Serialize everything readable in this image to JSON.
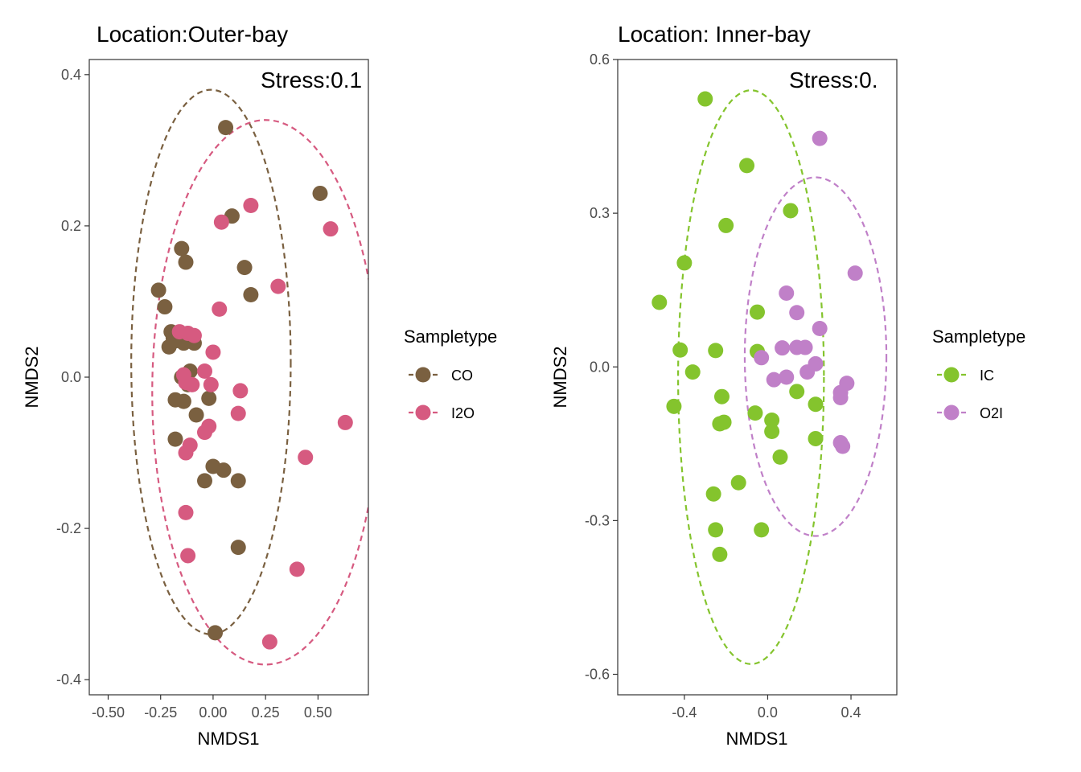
{
  "chart_data": [
    {
      "type": "scatter",
      "title": "Location:Outer-bay",
      "annotation": "Stress:0.1",
      "xlabel": "NMDS1",
      "ylabel": "NMDS2",
      "xlim": [
        -0.59,
        0.74
      ],
      "ylim": [
        -0.42,
        0.42
      ],
      "xticks": [
        -0.5,
        -0.25,
        0.0,
        0.25,
        0.5
      ],
      "xtick_labels": [
        "-0.50",
        "-0.25",
        "0.00",
        "0.25",
        "0.50"
      ],
      "yticks": [
        -0.4,
        -0.2,
        0.0,
        0.2,
        0.4
      ],
      "ytick_labels": [
        "-0.4",
        "-0.2",
        "0.0",
        "0.2",
        "0.4"
      ],
      "grid": false,
      "legend": {
        "title": "Sampletype",
        "position": "right"
      },
      "series": [
        {
          "name": "CO",
          "color": "#7a6040",
          "ellipse": {
            "cx": -0.01,
            "cy": 0.02,
            "rx": 0.38,
            "ry": 0.36
          },
          "points": [
            [
              0.06,
              0.33
            ],
            [
              0.09,
              0.213
            ],
            [
              0.51,
              0.243
            ],
            [
              -0.15,
              0.17
            ],
            [
              -0.13,
              0.152
            ],
            [
              0.15,
              0.145
            ],
            [
              -0.26,
              0.115
            ],
            [
              0.18,
              0.109
            ],
            [
              -0.23,
              0.093
            ],
            [
              -0.2,
              0.06
            ],
            [
              -0.19,
              0.052
            ],
            [
              -0.18,
              0.048
            ],
            [
              -0.14,
              0.045
            ],
            [
              -0.09,
              0.045
            ],
            [
              -0.21,
              0.04
            ],
            [
              -0.11,
              0.008
            ],
            [
              -0.15,
              0.0
            ],
            [
              -0.12,
              -0.01
            ],
            [
              -0.18,
              -0.03
            ],
            [
              -0.14,
              -0.032
            ],
            [
              -0.02,
              -0.028
            ],
            [
              -0.08,
              -0.05
            ],
            [
              -0.18,
              -0.082
            ],
            [
              0.0,
              -0.118
            ],
            [
              0.05,
              -0.123
            ],
            [
              -0.04,
              -0.137
            ],
            [
              0.12,
              -0.137
            ],
            [
              0.12,
              -0.225
            ],
            [
              0.01,
              -0.338
            ]
          ]
        },
        {
          "name": "I2O",
          "color": "#d65a80",
          "ellipse": {
            "cx": 0.25,
            "cy": -0.02,
            "rx": 0.54,
            "ry": 0.36
          },
          "points": [
            [
              0.18,
              0.227
            ],
            [
              0.04,
              0.205
            ],
            [
              0.56,
              0.196
            ],
            [
              0.31,
              0.12
            ],
            [
              0.03,
              0.09
            ],
            [
              -0.16,
              0.06
            ],
            [
              -0.12,
              0.058
            ],
            [
              -0.09,
              0.055
            ],
            [
              0.0,
              0.033
            ],
            [
              -0.04,
              0.008
            ],
            [
              -0.14,
              0.003
            ],
            [
              -0.13,
              -0.007
            ],
            [
              -0.1,
              -0.01
            ],
            [
              -0.01,
              -0.01
            ],
            [
              0.13,
              -0.018
            ],
            [
              0.12,
              -0.048
            ],
            [
              0.63,
              -0.06
            ],
            [
              -0.02,
              -0.065
            ],
            [
              -0.04,
              -0.073
            ],
            [
              -0.11,
              -0.09
            ],
            [
              -0.13,
              -0.1
            ],
            [
              0.44,
              -0.106
            ],
            [
              -0.13,
              -0.179
            ],
            [
              -0.12,
              -0.236
            ],
            [
              0.4,
              -0.254
            ],
            [
              0.27,
              -0.35
            ]
          ]
        }
      ]
    },
    {
      "type": "scatter",
      "title": "Location: Inner-bay",
      "annotation": "Stress:0.",
      "xlabel": "NMDS1",
      "ylabel": "NMDS2",
      "xlim": [
        -0.72,
        0.62
      ],
      "ylim": [
        -0.64,
        0.6
      ],
      "xticks": [
        -0.4,
        0.0,
        0.4
      ],
      "xtick_labels": [
        "-0.4",
        "0.0",
        "0.4"
      ],
      "yticks": [
        -0.6,
        -0.3,
        0.0,
        0.3,
        0.6
      ],
      "ytick_labels": [
        "-0.6",
        "-0.3",
        "0.0",
        "0.3",
        "0.6"
      ],
      "grid": false,
      "legend": {
        "title": "Sampletype",
        "position": "right"
      },
      "series": [
        {
          "name": "IC",
          "color": "#84c42d",
          "ellipse": {
            "cx": -0.08,
            "cy": -0.02,
            "rx": 0.35,
            "ry": 0.56
          },
          "points": [
            [
              -0.3,
              0.523
            ],
            [
              -0.1,
              0.393
            ],
            [
              0.11,
              0.305
            ],
            [
              -0.2,
              0.276
            ],
            [
              -0.4,
              0.203
            ],
            [
              -0.52,
              0.126
            ],
            [
              -0.05,
              0.107
            ],
            [
              -0.42,
              0.033
            ],
            [
              -0.25,
              0.032
            ],
            [
              -0.05,
              0.03
            ],
            [
              -0.36,
              -0.01
            ],
            [
              0.14,
              -0.048
            ],
            [
              -0.22,
              -0.058
            ],
            [
              -0.45,
              -0.077
            ],
            [
              0.23,
              -0.073
            ],
            [
              -0.06,
              -0.09
            ],
            [
              0.02,
              -0.104
            ],
            [
              -0.23,
              -0.111
            ],
            [
              -0.21,
              -0.108
            ],
            [
              0.02,
              -0.126
            ],
            [
              0.23,
              -0.14
            ],
            [
              0.06,
              -0.176
            ],
            [
              -0.14,
              -0.226
            ],
            [
              -0.26,
              -0.248
            ],
            [
              -0.25,
              -0.318
            ],
            [
              -0.03,
              -0.318
            ],
            [
              -0.23,
              -0.366
            ]
          ]
        },
        {
          "name": "O2I",
          "color": "#c080c8",
          "ellipse": {
            "cx": 0.23,
            "cy": 0.02,
            "rx": 0.34,
            "ry": 0.35
          },
          "points": [
            [
              0.25,
              0.446
            ],
            [
              0.42,
              0.183
            ],
            [
              0.09,
              0.144
            ],
            [
              0.14,
              0.106
            ],
            [
              0.25,
              0.075
            ],
            [
              0.07,
              0.037
            ],
            [
              0.14,
              0.038
            ],
            [
              0.18,
              0.038
            ],
            [
              -0.03,
              0.018
            ],
            [
              0.23,
              0.006
            ],
            [
              0.19,
              -0.01
            ],
            [
              0.09,
              -0.02
            ],
            [
              0.03,
              -0.025
            ],
            [
              0.38,
              -0.032
            ],
            [
              0.35,
              -0.05
            ],
            [
              0.35,
              -0.06
            ],
            [
              0.35,
              -0.148
            ],
            [
              0.36,
              -0.155
            ]
          ]
        }
      ]
    }
  ]
}
